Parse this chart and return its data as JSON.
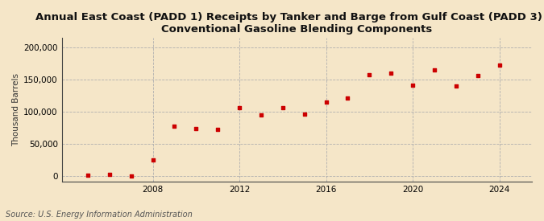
{
  "title": "Annual East Coast (PADD 1) Receipts by Tanker and Barge from Gulf Coast (PADD 3) of\nConventional Gasoline Blending Components",
  "ylabel": "Thousand Barrels",
  "source": "Source: U.S. Energy Information Administration",
  "background_color": "#f5e6c8",
  "plot_bg_color": "#f5e6c8",
  "marker_color": "#cc0000",
  "years": [
    2005,
    2006,
    2007,
    2008,
    2009,
    2010,
    2011,
    2012,
    2013,
    2014,
    2015,
    2016,
    2017,
    2018,
    2019,
    2020,
    2021,
    2022,
    2023,
    2024
  ],
  "values": [
    2000,
    3000,
    500,
    25000,
    78000,
    74000,
    73000,
    107000,
    95000,
    106000,
    97000,
    115000,
    122000,
    157000,
    160000,
    142000,
    165000,
    140000,
    156000,
    172000
  ],
  "ylim": [
    -8000,
    215000
  ],
  "yticks": [
    0,
    50000,
    100000,
    150000,
    200000
  ],
  "ytick_labels": [
    "0",
    "50,000",
    "100,000",
    "150,000",
    "200,000"
  ],
  "xticks": [
    2008,
    2012,
    2016,
    2020,
    2024
  ],
  "grid_color": "#b0b0b0",
  "title_fontsize": 9.5,
  "label_fontsize": 7.5,
  "tick_fontsize": 7.5,
  "source_fontsize": 7
}
